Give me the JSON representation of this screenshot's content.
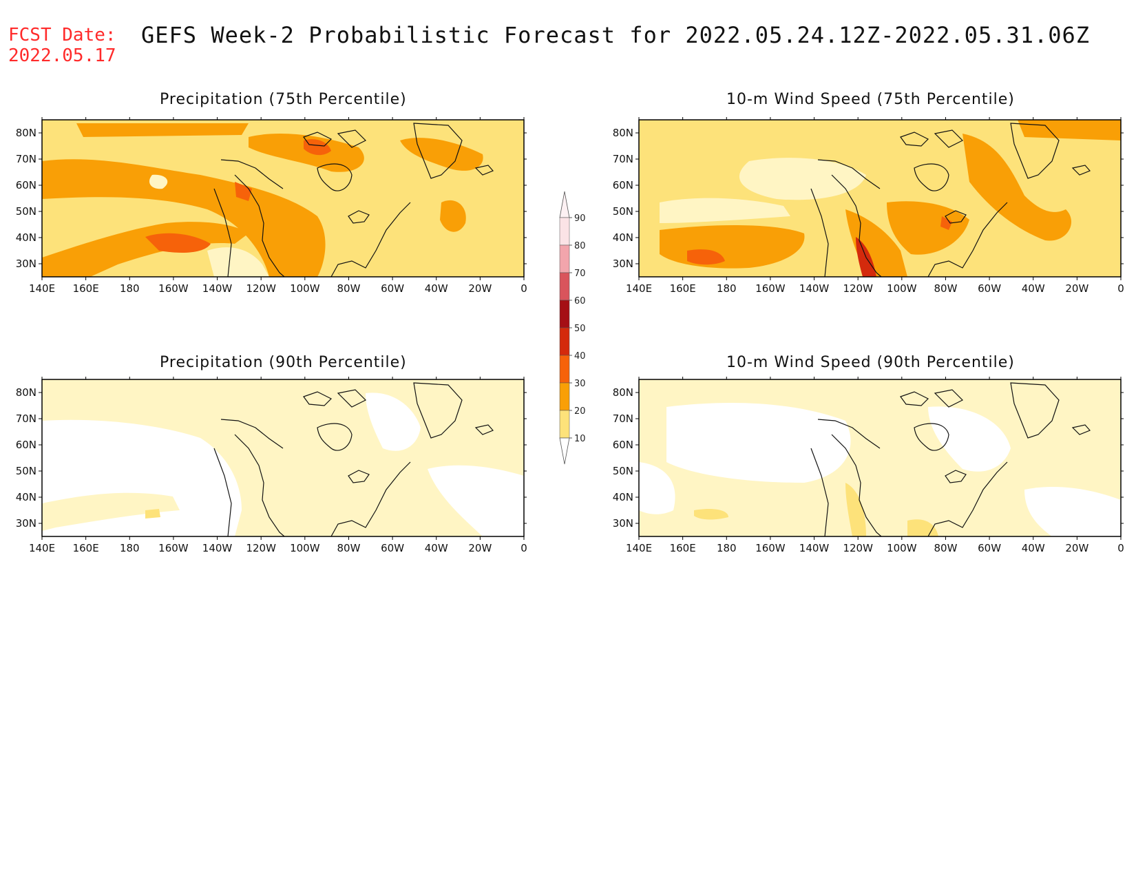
{
  "header": {
    "fcst_label": "FCST Date:",
    "fcst_date": "2022.05.17",
    "title": "GEFS Week-2 Probabilistic Forecast for 2022.05.24.12Z-2022.05.31.06Z",
    "label_color": "#ff2a2a"
  },
  "axes": {
    "lon_ticks": [
      "140E",
      "160E",
      "180",
      "160W",
      "140W",
      "120W",
      "100W",
      "80W",
      "60W",
      "40W",
      "20W",
      "0"
    ],
    "lat_ticks": [
      "80N",
      "70N",
      "60N",
      "50N",
      "40N",
      "30N"
    ]
  },
  "panels": [
    {
      "id": "precip-75",
      "title": "Precipitation (75th Percentile)"
    },
    {
      "id": "wind-75",
      "title": "10-m Wind Speed (75th Percentile)"
    },
    {
      "id": "precip-90",
      "title": "Precipitation (90th Percentile)"
    },
    {
      "id": "wind-90",
      "title": "10-m Wind Speed (90th Percentile)"
    }
  ],
  "colorbar": {
    "levels": [
      {
        "label": "90",
        "color": "#fbe3e6"
      },
      {
        "label": "80",
        "color": "#f2a5ac"
      },
      {
        "label": "70",
        "color": "#d9545c"
      },
      {
        "label": "60",
        "color": "#a50f15"
      },
      {
        "label": "50",
        "color": "#d42a0c"
      },
      {
        "label": "40",
        "color": "#f6620a"
      },
      {
        "label": "30",
        "color": "#f99f06"
      },
      {
        "label": "20",
        "color": "#fde27a"
      },
      {
        "label": "10",
        "color": "#fff5c4"
      }
    ]
  }
}
